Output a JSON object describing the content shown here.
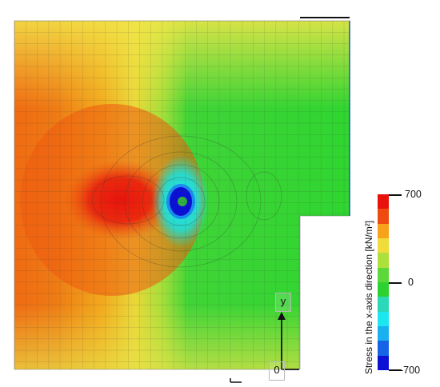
{
  "colorbar": {
    "title": "Stress in the x-axis direction [kN/m²]",
    "tick_max": "700",
    "tick_mid": "0",
    "tick_min": "-700",
    "colors": [
      "#e8120c",
      "#ef4a10",
      "#f7a21a",
      "#f0dc3a",
      "#aee03c",
      "#5cd83a",
      "#2dd230",
      "#2bd8b8",
      "#1ce6f0",
      "#1ab0f0",
      "#1664e6",
      "#0b10d4"
    ]
  },
  "axes": {
    "y_label": "y",
    "origin_label": "0"
  }
}
